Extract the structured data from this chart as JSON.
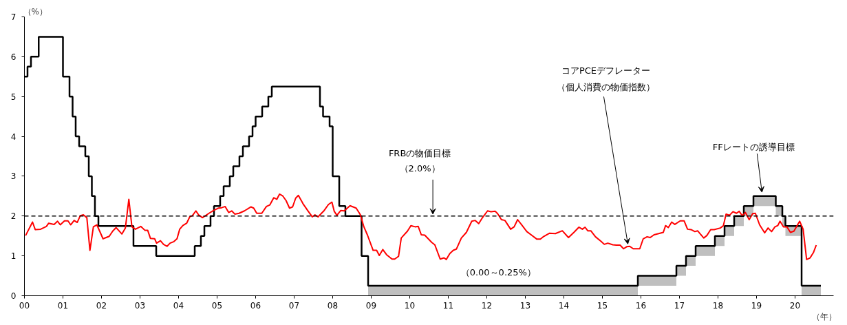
{
  "chart_data": {
    "type": "line",
    "xlabel": "（年）",
    "ylabel": "（%）",
    "xlim": [
      0,
      21
    ],
    "xticks": [
      {
        "value": 0,
        "label": "00"
      },
      {
        "value": 1,
        "label": "01"
      },
      {
        "value": 2,
        "label": "02"
      },
      {
        "value": 3,
        "label": "03"
      },
      {
        "value": 4,
        "label": "04"
      },
      {
        "value": 5,
        "label": "05"
      },
      {
        "value": 6,
        "label": "06"
      },
      {
        "value": 7,
        "label": "07"
      },
      {
        "value": 8,
        "label": "08"
      },
      {
        "value": 9,
        "label": "09"
      },
      {
        "value": 10,
        "label": "10"
      },
      {
        "value": 11,
        "label": "11"
      },
      {
        "value": 12,
        "label": "12"
      },
      {
        "value": 13,
        "label": "13"
      },
      {
        "value": 14,
        "label": "14"
      },
      {
        "value": 15,
        "label": "15"
      },
      {
        "value": 16,
        "label": "16"
      },
      {
        "value": 17,
        "label": "17"
      },
      {
        "value": 18,
        "label": "18"
      },
      {
        "value": 19,
        "label": "19"
      },
      {
        "value": 20,
        "label": "20"
      }
    ],
    "ylim": [
      0,
      7
    ],
    "yticks": [
      0,
      1,
      2,
      3,
      4,
      5,
      6,
      7
    ],
    "grid": false,
    "line_style": "solid",
    "ref_lines": [
      {
        "axis": "y",
        "value": 2,
        "color": "#000000",
        "line_style": "dashed"
      }
    ],
    "series": [
      {
        "type": "step",
        "color": "#000000",
        "x": [
          0.0,
          0.08,
          0.17,
          0.37,
          1.0,
          1.17,
          1.25,
          1.33,
          1.42,
          1.58,
          1.67,
          1.75,
          1.83,
          1.92,
          2.83,
          3.42,
          4.42,
          4.58,
          4.67,
          4.83,
          4.92,
          5.08,
          5.17,
          5.33,
          5.42,
          5.58,
          5.67,
          5.83,
          5.92,
          6.0,
          6.17,
          6.33,
          6.42,
          7.67,
          7.75,
          7.92,
          8.0,
          8.17,
          8.33,
          8.75,
          8.92,
          15.92,
          16.92,
          17.17,
          17.42,
          17.92,
          18.17,
          18.42,
          18.67,
          18.92,
          19.5,
          19.67,
          19.75,
          20.17,
          20.67
        ],
        "values": [
          5.5,
          5.75,
          6.0,
          6.5,
          5.5,
          5.0,
          4.5,
          4.0,
          3.75,
          3.5,
          3.0,
          2.5,
          2.0,
          1.75,
          1.25,
          1.0,
          1.25,
          1.5,
          1.75,
          2.0,
          2.25,
          2.5,
          2.75,
          3.0,
          3.25,
          3.5,
          3.75,
          4.0,
          4.25,
          4.5,
          4.75,
          5.0,
          5.25,
          4.75,
          4.5,
          4.25,
          3.0,
          2.25,
          2.0,
          1.0,
          0.25,
          0.5,
          0.75,
          1.0,
          1.25,
          1.5,
          1.75,
          2.0,
          2.25,
          2.5,
          2.25,
          2.0,
          1.75,
          0.25,
          0.25
        ],
        "lower": [
          null,
          null,
          null,
          null,
          null,
          null,
          null,
          null,
          null,
          null,
          null,
          null,
          null,
          null,
          null,
          null,
          null,
          null,
          null,
          null,
          null,
          null,
          null,
          null,
          null,
          null,
          null,
          null,
          null,
          null,
          null,
          null,
          null,
          null,
          null,
          null,
          null,
          null,
          null,
          null,
          0,
          0.25,
          0.5,
          0.75,
          1.0,
          1.25,
          1.5,
          1.75,
          2.0,
          2.25,
          2.0,
          1.75,
          1.5,
          0,
          0
        ],
        "upper": [
          null,
          null,
          null,
          null,
          null,
          null,
          null,
          null,
          null,
          null,
          null,
          null,
          null,
          null,
          null,
          null,
          null,
          null,
          null,
          null,
          null,
          null,
          null,
          null,
          null,
          null,
          null,
          null,
          null,
          null,
          null,
          null,
          null,
          null,
          null,
          null,
          null,
          null,
          null,
          null,
          0.25,
          0.5,
          0.75,
          1.0,
          1.25,
          1.5,
          1.75,
          2.0,
          2.25,
          2.5,
          2.25,
          2.0,
          1.75,
          0.25,
          0.25
        ]
      },
      {
        "color": "#ff0000",
        "x": [
          0.03,
          0.21,
          0.28,
          0.42,
          0.57,
          0.63,
          0.77,
          0.86,
          0.93,
          1.04,
          1.13,
          1.2,
          1.29,
          1.37,
          1.45,
          1.53,
          1.62,
          1.7,
          1.79,
          1.88,
          2.04,
          2.2,
          2.29,
          2.38,
          2.53,
          2.62,
          2.71,
          2.79,
          2.88,
          3.02,
          3.13,
          3.2,
          3.27,
          3.38,
          3.43,
          3.53,
          3.61,
          3.7,
          3.78,
          3.88,
          3.96,
          4.03,
          4.11,
          4.21,
          4.29,
          4.36,
          4.45,
          4.52,
          4.62,
          4.79,
          4.91,
          5.04,
          5.12,
          5.21,
          5.3,
          5.38,
          5.46,
          5.57,
          5.71,
          5.88,
          5.95,
          6.03,
          6.16,
          6.28,
          6.37,
          6.47,
          6.55,
          6.62,
          6.7,
          6.79,
          6.88,
          6.96,
          7.04,
          7.11,
          7.23,
          7.35,
          7.47,
          7.54,
          7.62,
          7.71,
          7.78,
          7.89,
          7.98,
          8.04,
          8.11,
          8.21,
          8.3,
          8.45,
          8.61,
          8.72,
          8.81,
          8.9,
          9.05,
          9.14,
          9.21,
          9.3,
          9.4,
          9.54,
          9.61,
          9.71,
          9.78,
          9.94,
          10.03,
          10.14,
          10.22,
          10.3,
          10.39,
          10.57,
          10.65,
          10.79,
          10.89,
          10.95,
          11.04,
          11.13,
          11.21,
          11.34,
          11.47,
          11.61,
          11.7,
          11.79,
          11.88,
          12.02,
          12.11,
          12.22,
          12.28,
          12.38,
          12.47,
          12.62,
          12.71,
          12.8,
          12.92,
          13.04,
          13.15,
          13.3,
          13.39,
          13.48,
          13.63,
          13.78,
          13.96,
          14.12,
          14.26,
          14.39,
          14.48,
          14.55,
          14.62,
          14.7,
          14.82,
          14.96,
          15.05,
          15.14,
          15.27,
          15.36,
          15.46,
          15.55,
          15.63,
          15.71,
          15.8,
          15.97,
          16.06,
          16.16,
          16.24,
          16.34,
          16.46,
          16.58,
          16.64,
          16.71,
          16.8,
          16.88,
          17.02,
          17.12,
          17.21,
          17.3,
          17.4,
          17.47,
          17.63,
          17.71,
          17.81,
          17.9,
          18.06,
          18.14,
          18.21,
          18.3,
          18.39,
          18.48,
          18.55,
          18.63,
          18.71,
          18.81,
          18.9,
          18.97,
          19.08,
          19.21,
          19.3,
          19.39,
          19.48,
          19.55,
          19.61,
          19.7,
          19.79,
          19.88,
          19.97,
          20.12,
          20.21,
          20.3,
          20.39,
          20.48,
          20.55
        ],
        "values": [
          1.51,
          1.85,
          1.66,
          1.67,
          1.74,
          1.82,
          1.79,
          1.87,
          1.78,
          1.88,
          1.88,
          1.78,
          1.89,
          1.84,
          2.01,
          2.03,
          1.96,
          1.14,
          1.73,
          1.78,
          1.43,
          1.49,
          1.62,
          1.71,
          1.55,
          1.7,
          2.42,
          1.73,
          1.67,
          1.74,
          1.64,
          1.64,
          1.44,
          1.43,
          1.32,
          1.38,
          1.29,
          1.24,
          1.32,
          1.36,
          1.43,
          1.67,
          1.76,
          1.82,
          1.98,
          2.01,
          2.13,
          2.03,
          1.96,
          2.07,
          2.14,
          2.2,
          2.21,
          2.24,
          2.09,
          2.13,
          2.05,
          2.07,
          2.13,
          2.23,
          2.2,
          2.07,
          2.07,
          2.24,
          2.28,
          2.46,
          2.42,
          2.55,
          2.51,
          2.39,
          2.2,
          2.23,
          2.45,
          2.52,
          2.31,
          2.14,
          1.98,
          2.03,
          1.98,
          2.07,
          2.14,
          2.29,
          2.35,
          2.12,
          2.02,
          2.14,
          2.13,
          2.26,
          2.2,
          2.03,
          1.73,
          1.53,
          1.14,
          1.14,
          1.01,
          1.16,
          1.03,
          0.92,
          0.92,
          0.99,
          1.45,
          1.62,
          1.76,
          1.73,
          1.74,
          1.53,
          1.52,
          1.34,
          1.28,
          0.92,
          0.95,
          0.91,
          1.06,
          1.14,
          1.17,
          1.45,
          1.59,
          1.87,
          1.89,
          1.81,
          1.95,
          2.13,
          2.11,
          2.12,
          2.06,
          1.91,
          1.89,
          1.67,
          1.73,
          1.91,
          1.76,
          1.61,
          1.53,
          1.42,
          1.42,
          1.49,
          1.57,
          1.56,
          1.63,
          1.46,
          1.59,
          1.72,
          1.67,
          1.72,
          1.63,
          1.63,
          1.48,
          1.37,
          1.29,
          1.32,
          1.28,
          1.27,
          1.27,
          1.18,
          1.23,
          1.24,
          1.18,
          1.18,
          1.43,
          1.48,
          1.46,
          1.53,
          1.56,
          1.59,
          1.76,
          1.71,
          1.85,
          1.79,
          1.88,
          1.88,
          1.67,
          1.66,
          1.61,
          1.63,
          1.45,
          1.51,
          1.66,
          1.66,
          1.7,
          1.76,
          2.05,
          2.02,
          2.11,
          2.07,
          2.12,
          2.01,
          2.09,
          1.91,
          2.06,
          2.07,
          1.78,
          1.58,
          1.7,
          1.61,
          1.73,
          1.76,
          1.87,
          1.73,
          1.73,
          1.59,
          1.62,
          1.87,
          1.67,
          0.91,
          0.95,
          1.09,
          1.27
        ]
      }
    ],
    "annotations": [
      "FRBの物価目標",
      {
        "text": "（2.0%）",
        "x": 10.6,
        "y": 2.05
      },
      "コアPCEデフレーター",
      {
        "text": "（個人消費の物価指数）",
        "x": 15.66,
        "y": 1.3
      },
      {
        "text": "FFレートの誘導目標",
        "x": 19.14,
        "y": 2.6
      },
      {
        "text": "（0.00～0.25%）",
        "x": 12.3,
        "y": 0.25
      }
    ]
  }
}
